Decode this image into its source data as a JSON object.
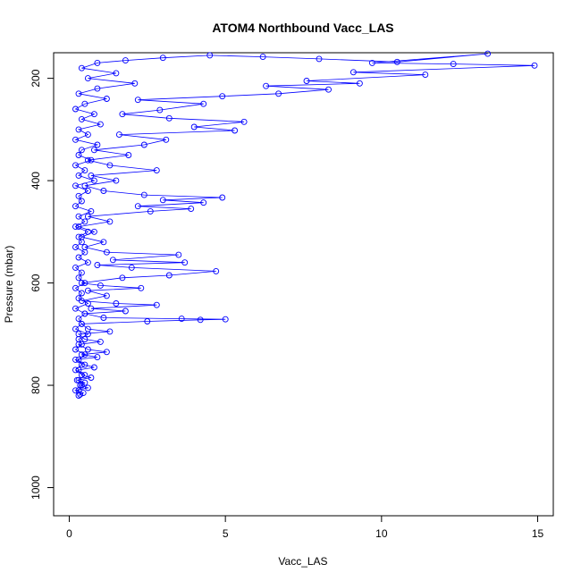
{
  "chart_data": {
    "type": "line",
    "title": "ATOM4 Northbound Vacc_LAS",
    "xlabel": "Vacc_LAS",
    "ylabel": "Pressure (mbar)",
    "xlim": [
      -0.5,
      15.5
    ],
    "ylim": [
      1055,
      150
    ],
    "y_reversed": true,
    "x_ticks": [
      0,
      5,
      10,
      15
    ],
    "y_ticks": [
      200,
      400,
      600,
      800,
      1000
    ],
    "series": [
      {
        "marker": "open-circle",
        "line": true,
        "color": "#0000ff",
        "points": [
          [
            0.3,
            820
          ],
          [
            0.45,
            815
          ],
          [
            0.2,
            810
          ],
          [
            0.6,
            805
          ],
          [
            0.35,
            800
          ],
          [
            0.5,
            795
          ],
          [
            0.25,
            790
          ],
          [
            0.7,
            785
          ],
          [
            0.4,
            780
          ],
          [
            0.3,
            770
          ],
          [
            0.8,
            765
          ],
          [
            0.5,
            760
          ],
          [
            0.2,
            750
          ],
          [
            0.9,
            745
          ],
          [
            0.4,
            740
          ],
          [
            1.2,
            735
          ],
          [
            0.6,
            730
          ],
          [
            0.3,
            720
          ],
          [
            1.0,
            715
          ],
          [
            0.5,
            710
          ],
          [
            0.3,
            700
          ],
          [
            1.3,
            695
          ],
          [
            0.6,
            690
          ],
          [
            0.4,
            680
          ],
          [
            2.5,
            675
          ],
          [
            4.2,
            672
          ],
          [
            5.0,
            671
          ],
          [
            3.6,
            670
          ],
          [
            1.1,
            668
          ],
          [
            0.5,
            660
          ],
          [
            1.8,
            655
          ],
          [
            0.7,
            650
          ],
          [
            2.8,
            643
          ],
          [
            1.5,
            640
          ],
          [
            0.4,
            635
          ],
          [
            1.2,
            625
          ],
          [
            0.6,
            615
          ],
          [
            2.3,
            610
          ],
          [
            1.0,
            605
          ],
          [
            0.4,
            600
          ],
          [
            1.7,
            590
          ],
          [
            3.2,
            585
          ],
          [
            4.7,
            577
          ],
          [
            2.0,
            570
          ],
          [
            0.9,
            565
          ],
          [
            3.7,
            560
          ],
          [
            1.4,
            555
          ],
          [
            3.5,
            545
          ],
          [
            1.2,
            540
          ],
          [
            0.5,
            530
          ],
          [
            1.1,
            520
          ],
          [
            0.4,
            510
          ],
          [
            0.8,
            500
          ],
          [
            0.3,
            490
          ],
          [
            1.3,
            480
          ],
          [
            0.6,
            470
          ],
          [
            2.6,
            460
          ],
          [
            3.9,
            455
          ],
          [
            2.2,
            450
          ],
          [
            4.3,
            443
          ],
          [
            3.0,
            438
          ],
          [
            4.9,
            433
          ],
          [
            2.4,
            428
          ],
          [
            1.1,
            420
          ],
          [
            0.5,
            410
          ],
          [
            1.5,
            400
          ],
          [
            0.7,
            390
          ],
          [
            2.8,
            380
          ],
          [
            1.3,
            370
          ],
          [
            0.6,
            360
          ],
          [
            1.9,
            350
          ],
          [
            0.8,
            340
          ],
          [
            2.4,
            330
          ],
          [
            3.1,
            320
          ],
          [
            1.6,
            310
          ],
          [
            5.3,
            302
          ],
          [
            4.0,
            295
          ],
          [
            5.6,
            285
          ],
          [
            3.2,
            278
          ],
          [
            1.7,
            270
          ],
          [
            2.9,
            262
          ],
          [
            4.3,
            250
          ],
          [
            2.2,
            242
          ],
          [
            4.9,
            235
          ],
          [
            6.7,
            230
          ],
          [
            8.3,
            222
          ],
          [
            6.3,
            215
          ],
          [
            9.3,
            210
          ],
          [
            7.6,
            205
          ],
          [
            11.4,
            193
          ],
          [
            9.1,
            188
          ],
          [
            14.9,
            175
          ],
          [
            12.3,
            172
          ],
          [
            9.7,
            170
          ],
          [
            13.4,
            152
          ],
          [
            10.5,
            168
          ],
          [
            8.0,
            162
          ],
          [
            6.2,
            158
          ],
          [
            4.5,
            155
          ],
          [
            3.0,
            160
          ],
          [
            1.8,
            165
          ],
          [
            0.9,
            170
          ],
          [
            0.4,
            180
          ],
          [
            1.5,
            190
          ],
          [
            0.6,
            200
          ],
          [
            2.1,
            210
          ],
          [
            0.9,
            220
          ],
          [
            0.3,
            230
          ],
          [
            1.2,
            240
          ],
          [
            0.5,
            250
          ],
          [
            0.2,
            260
          ],
          [
            0.8,
            270
          ],
          [
            0.4,
            280
          ],
          [
            1.0,
            290
          ],
          [
            0.3,
            300
          ],
          [
            0.6,
            310
          ],
          [
            0.2,
            320
          ],
          [
            0.9,
            330
          ],
          [
            0.4,
            340
          ],
          [
            0.3,
            350
          ],
          [
            0.7,
            360
          ],
          [
            0.2,
            370
          ],
          [
            0.5,
            380
          ],
          [
            0.3,
            390
          ],
          [
            0.8,
            400
          ],
          [
            0.2,
            410
          ],
          [
            0.6,
            420
          ],
          [
            0.3,
            430
          ],
          [
            0.4,
            440
          ],
          [
            0.2,
            450
          ],
          [
            0.7,
            460
          ],
          [
            0.3,
            470
          ],
          [
            0.5,
            480
          ],
          [
            0.2,
            490
          ],
          [
            0.6,
            500
          ],
          [
            0.3,
            510
          ],
          [
            0.4,
            520
          ],
          [
            0.2,
            530
          ],
          [
            0.5,
            540
          ],
          [
            0.3,
            550
          ],
          [
            0.6,
            560
          ],
          [
            0.2,
            570
          ],
          [
            0.4,
            580
          ],
          [
            0.3,
            590
          ],
          [
            0.5,
            600
          ],
          [
            0.2,
            610
          ],
          [
            0.4,
            620
          ],
          [
            0.3,
            630
          ],
          [
            0.6,
            640
          ],
          [
            0.2,
            650
          ],
          [
            0.5,
            660
          ],
          [
            0.3,
            670
          ],
          [
            0.4,
            680
          ],
          [
            0.2,
            690
          ],
          [
            0.6,
            700
          ],
          [
            0.3,
            710
          ],
          [
            0.4,
            720
          ],
          [
            0.2,
            730
          ],
          [
            0.5,
            740
          ],
          [
            0.3,
            750
          ],
          [
            0.4,
            760
          ],
          [
            0.2,
            770
          ],
          [
            0.5,
            780
          ],
          [
            0.3,
            790
          ],
          [
            0.4,
            800
          ],
          [
            0.3,
            810
          ],
          [
            0.35,
            818
          ]
        ]
      }
    ]
  }
}
